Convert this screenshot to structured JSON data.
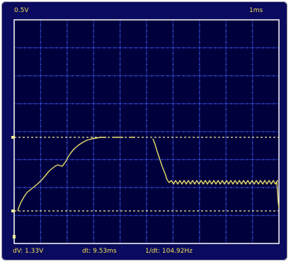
{
  "header": {
    "volts_per_div": "0.5V",
    "time_per_div": "1ms"
  },
  "footer": {
    "dv": "dV: 1.33V",
    "dt": "dt: 9.53ms",
    "inv_dt": "1/dt: 104.92Hz"
  },
  "colors": {
    "frame": "#0a0a5e",
    "frame_edge": "#9a9aa6",
    "grid_bg": "#00003d",
    "grid_line": "#1b2a98",
    "grid_border": "#ffffff",
    "trace": "#e8dd6a",
    "cursor": "#f2ee9a",
    "text": "#f2e05a"
  }
}
